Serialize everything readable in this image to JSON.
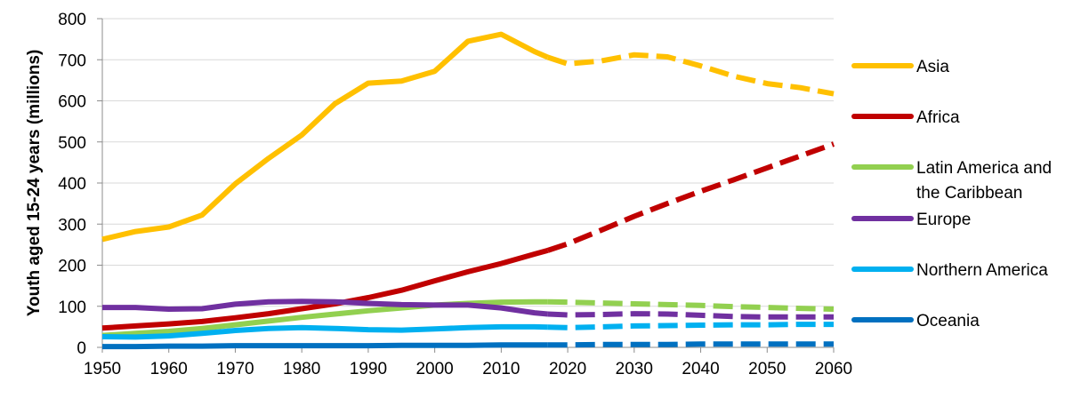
{
  "chart_data": {
    "type": "line",
    "title": "",
    "xlabel": "",
    "ylabel": "Youth aged 15-24 years (millions)",
    "xlim": [
      1950,
      2060
    ],
    "ylim": [
      0,
      800
    ],
    "x_ticks": [
      "1950",
      "1960",
      "1970",
      "1980",
      "1990",
      "2000",
      "2010",
      "2020",
      "2030",
      "2040",
      "2050",
      "2060"
    ],
    "y_ticks": [
      "0",
      "100",
      "200",
      "300",
      "400",
      "500",
      "600",
      "700",
      "800"
    ],
    "grid": "horizontal",
    "legend_position": "right",
    "projection_start": 2017,
    "series": [
      {
        "name": "Asia",
        "color": "#FFC000",
        "points": [
          [
            1950,
            263
          ],
          [
            1955,
            282
          ],
          [
            1960,
            293
          ],
          [
            1965,
            322
          ],
          [
            1970,
            398
          ],
          [
            1975,
            460
          ],
          [
            1980,
            517
          ],
          [
            1985,
            593
          ],
          [
            1990,
            643
          ],
          [
            1995,
            648
          ],
          [
            2000,
            672
          ],
          [
            2005,
            745
          ],
          [
            2010,
            762
          ],
          [
            2015,
            720
          ],
          [
            2017,
            706
          ],
          [
            2020,
            690
          ],
          [
            2025,
            697
          ],
          [
            2030,
            712
          ],
          [
            2035,
            707
          ],
          [
            2040,
            685
          ],
          [
            2045,
            660
          ],
          [
            2050,
            642
          ],
          [
            2055,
            632
          ],
          [
            2060,
            617
          ]
        ]
      },
      {
        "name": "Africa",
        "color": "#C00000",
        "points": [
          [
            1950,
            47
          ],
          [
            1955,
            52
          ],
          [
            1960,
            57
          ],
          [
            1965,
            63
          ],
          [
            1970,
            72
          ],
          [
            1975,
            82
          ],
          [
            1980,
            94
          ],
          [
            1985,
            106
          ],
          [
            1990,
            121
          ],
          [
            1995,
            139
          ],
          [
            2000,
            162
          ],
          [
            2005,
            184
          ],
          [
            2010,
            204
          ],
          [
            2015,
            227
          ],
          [
            2017,
            236
          ],
          [
            2020,
            252
          ],
          [
            2025,
            285
          ],
          [
            2030,
            319
          ],
          [
            2035,
            350
          ],
          [
            2040,
            380
          ],
          [
            2045,
            408
          ],
          [
            2050,
            437
          ],
          [
            2055,
            466
          ],
          [
            2060,
            495
          ]
        ]
      },
      {
        "name": "Latin America and the Caribbean",
        "color": "#92D050",
        "points": [
          [
            1950,
            29
          ],
          [
            1955,
            34
          ],
          [
            1960,
            39
          ],
          [
            1965,
            46
          ],
          [
            1970,
            55
          ],
          [
            1975,
            64
          ],
          [
            1980,
            73
          ],
          [
            1985,
            81
          ],
          [
            1990,
            89
          ],
          [
            1995,
            96
          ],
          [
            2000,
            103
          ],
          [
            2005,
            107
          ],
          [
            2010,
            110
          ],
          [
            2015,
            111
          ],
          [
            2017,
            111
          ],
          [
            2020,
            110
          ],
          [
            2025,
            108
          ],
          [
            2030,
            106
          ],
          [
            2035,
            104
          ],
          [
            2040,
            102
          ],
          [
            2045,
            99
          ],
          [
            2050,
            97
          ],
          [
            2055,
            95
          ],
          [
            2060,
            93
          ]
        ]
      },
      {
        "name": "Europe",
        "color": "#7030A0",
        "points": [
          [
            1950,
            97
          ],
          [
            1955,
            97
          ],
          [
            1960,
            93
          ],
          [
            1965,
            94
          ],
          [
            1970,
            105
          ],
          [
            1975,
            111
          ],
          [
            1980,
            112
          ],
          [
            1985,
            111
          ],
          [
            1990,
            107
          ],
          [
            1995,
            104
          ],
          [
            2000,
            103
          ],
          [
            2005,
            103
          ],
          [
            2010,
            96
          ],
          [
            2015,
            84
          ],
          [
            2017,
            81
          ],
          [
            2020,
            79
          ],
          [
            2025,
            80
          ],
          [
            2030,
            82
          ],
          [
            2035,
            81
          ],
          [
            2040,
            78
          ],
          [
            2045,
            75
          ],
          [
            2050,
            74
          ],
          [
            2055,
            74
          ],
          [
            2060,
            74
          ]
        ]
      },
      {
        "name": "Northern America",
        "color": "#00B0F0",
        "points": [
          [
            1950,
            26
          ],
          [
            1955,
            25
          ],
          [
            1960,
            28
          ],
          [
            1965,
            34
          ],
          [
            1970,
            41
          ],
          [
            1975,
            46
          ],
          [
            1980,
            48
          ],
          [
            1985,
            46
          ],
          [
            1990,
            43
          ],
          [
            1995,
            42
          ],
          [
            2000,
            45
          ],
          [
            2005,
            48
          ],
          [
            2010,
            50
          ],
          [
            2015,
            50
          ],
          [
            2017,
            49
          ],
          [
            2020,
            48
          ],
          [
            2025,
            50
          ],
          [
            2030,
            52
          ],
          [
            2035,
            53
          ],
          [
            2040,
            54
          ],
          [
            2045,
            55
          ],
          [
            2050,
            55
          ],
          [
            2055,
            56
          ],
          [
            2060,
            56
          ]
        ]
      },
      {
        "name": "Oceania",
        "color": "#0070C0",
        "points": [
          [
            1950,
            2
          ],
          [
            1955,
            2
          ],
          [
            1960,
            3
          ],
          [
            1965,
            3
          ],
          [
            1970,
            4
          ],
          [
            1975,
            4
          ],
          [
            1980,
            4
          ],
          [
            1985,
            4
          ],
          [
            1990,
            4
          ],
          [
            1995,
            5
          ],
          [
            2000,
            5
          ],
          [
            2005,
            5
          ],
          [
            2010,
            6
          ],
          [
            2015,
            6
          ],
          [
            2017,
            6
          ],
          [
            2020,
            6
          ],
          [
            2025,
            7
          ],
          [
            2030,
            7
          ],
          [
            2035,
            7
          ],
          [
            2040,
            8
          ],
          [
            2045,
            8
          ],
          [
            2050,
            8
          ],
          [
            2055,
            8
          ],
          [
            2060,
            8
          ]
        ]
      }
    ]
  }
}
